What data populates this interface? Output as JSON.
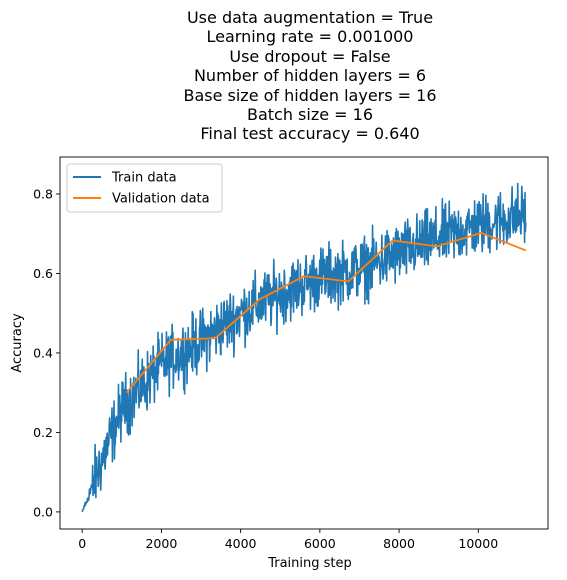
{
  "chart_data": {
    "type": "line",
    "title_lines": [
      "Use data augmentation = True",
      "Learning rate = 0.001000",
      "Use dropout = False",
      "Number of hidden layers = 6",
      "Base size of hidden layers = 16",
      "Batch size = 16",
      "Final test accuracy = 0.640"
    ],
    "xlabel": "Training step",
    "ylabel": "Accuracy",
    "xlim": [
      -560,
      11760
    ],
    "ylim": [
      -0.043,
      0.893
    ],
    "x_ticks": [
      0,
      2000,
      4000,
      6000,
      8000,
      10000
    ],
    "x_tick_labels": [
      "0",
      "2000",
      "4000",
      "6000",
      "8000",
      "10000"
    ],
    "y_ticks": [
      0.0,
      0.2,
      0.4,
      0.6,
      0.8
    ],
    "y_tick_labels": [
      "0.0",
      "0.2",
      "0.4",
      "0.6",
      "0.8"
    ],
    "grid": false,
    "legend_position": "upper-left",
    "series": [
      {
        "name": "Train data",
        "color": "#1f77b4",
        "x": [
          0,
          1000,
          2000,
          3000,
          4000,
          5000,
          6000,
          7000,
          8000,
          9000,
          10000,
          11200
        ],
        "y": [
          0.0,
          0.26,
          0.37,
          0.43,
          0.5,
          0.55,
          0.59,
          0.61,
          0.65,
          0.69,
          0.72,
          0.75
        ],
        "noise": 0.038,
        "steps": 1100
      },
      {
        "name": "Validation data",
        "color": "#ff7f0e",
        "x": [
          1120,
          2240,
          3360,
          4480,
          5600,
          6720,
          7840,
          8960,
          10080,
          11200
        ],
        "y": [
          0.3,
          0.433,
          0.437,
          0.535,
          0.593,
          0.58,
          0.683,
          0.668,
          0.702,
          0.658
        ]
      }
    ]
  }
}
